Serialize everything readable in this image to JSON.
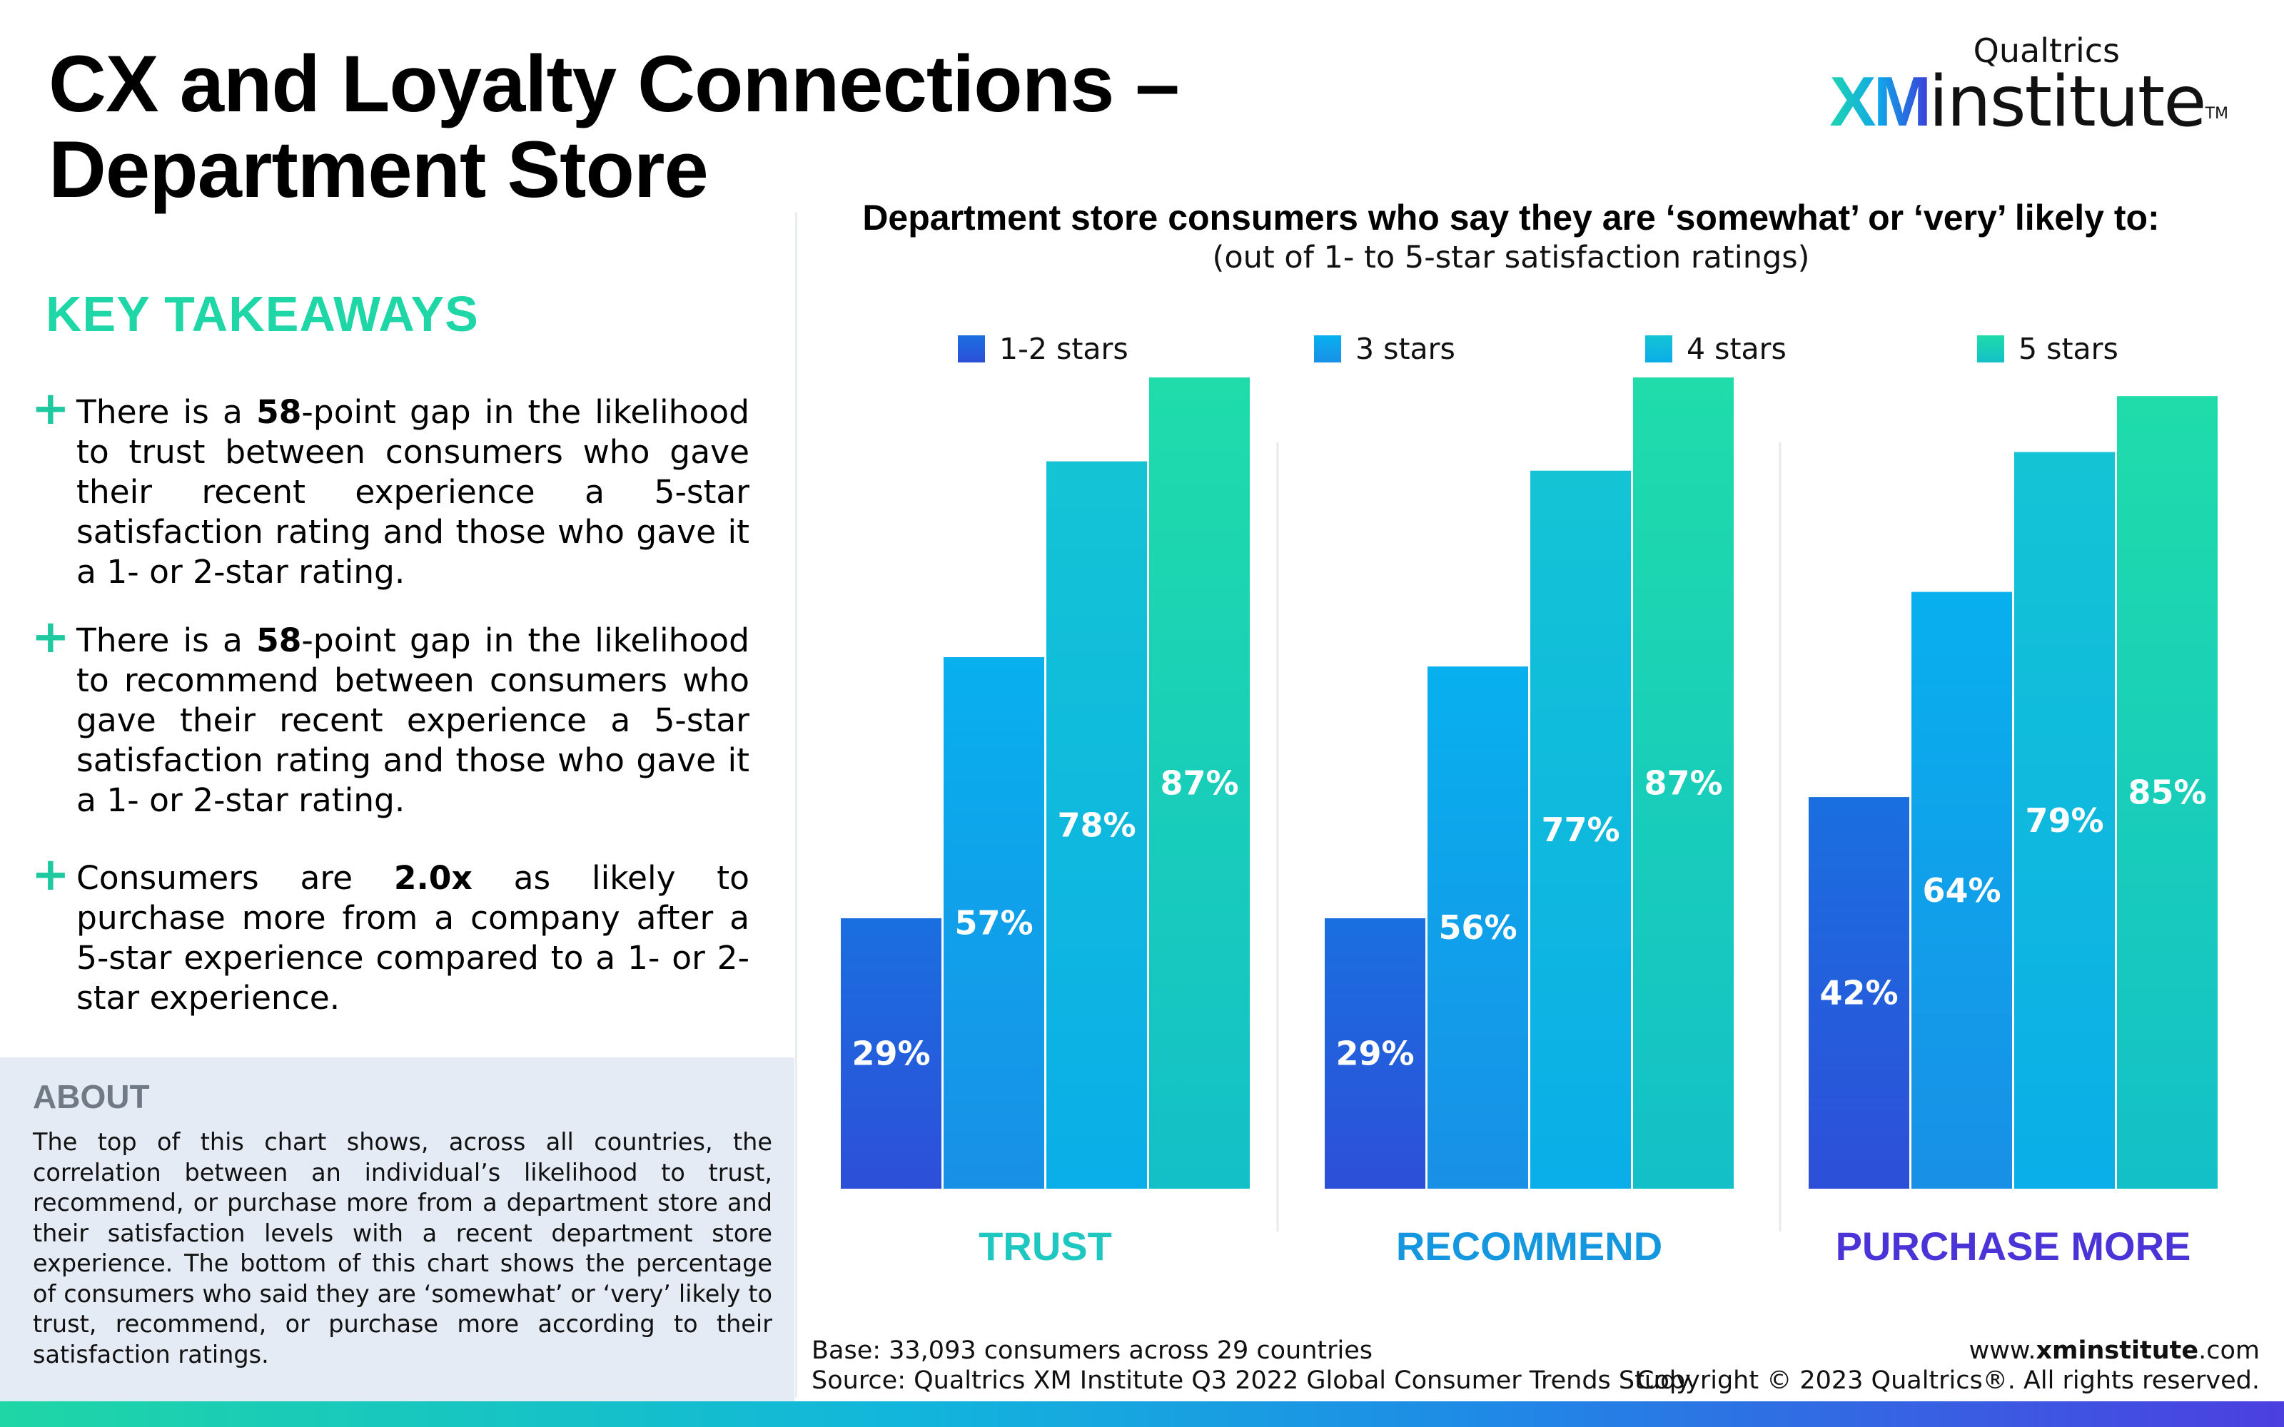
{
  "title": {
    "line1": "CX and Loyalty Connections –",
    "line2": "Department Store"
  },
  "logo": {
    "top": "Qualtrics",
    "xm": "XM",
    "institute": "institute",
    "tm": "TM"
  },
  "takeaways": {
    "heading": "KEY TAKEAWAYS",
    "items": [
      {
        "pre": "There is a ",
        "bold": "58",
        "post": "-point gap in the likelihood to trust between consumers who gave their recent experience a 5-star satisfaction rating and those who gave it a 1- or 2-star rating."
      },
      {
        "pre": "There is a  ",
        "bold": "58",
        "post": "-point gap in the likelihood to recommend between consumers who gave their recent experience a 5-star satisfaction rating and those who gave it a 1- or 2-star rating."
      },
      {
        "pre": "Consumers are ",
        "bold": "2.0x",
        "post": " as likely to purchase more from a company after a 5-star experience compared to a 1- or 2-star experience."
      }
    ]
  },
  "about": {
    "heading": "ABOUT",
    "text": "The top of this chart shows, across all countries, the correlation between an individual’s likelihood to trust, recommend, or purchase more from a department store and their satisfaction levels with a recent department store experience. The bottom of this chart shows the percentage of consumers who said they are ‘somewhat’ or ‘very’ likely to trust, recommend, or purchase more according to their satisfaction ratings."
  },
  "footer": {
    "base": "Base: 33,093 consumers across 29 countries",
    "source": "Source: Qualtrics XM Institute Q3 2022 Global Consumer Trends Study",
    "url_pre": "www.",
    "url_bold": "xminstitute",
    "url_post": ".com",
    "copyright": "Copyright © 2023 Qualtrics®. All rights reserved."
  },
  "chart_data": {
    "type": "bar",
    "title": "Department store consumers who say they are ‘somewhat’ or ‘very’ likely to:",
    "subtitle": "(out of 1- to 5-star satisfaction ratings)",
    "categories": [
      "TRUST",
      "RECOMMEND",
      "PURCHASE MORE"
    ],
    "category_colors": [
      "#1ec7c0",
      "#1597e0",
      "#4a34d8"
    ],
    "series": [
      {
        "name": "1-2 stars",
        "values": [
          29,
          29,
          42
        ],
        "labels": [
          "29%",
          "29%",
          "42%"
        ],
        "color_top": "#1a6fe0",
        "color_bottom": "#2d4fd8"
      },
      {
        "name": "3 stars",
        "values": [
          57,
          56,
          64
        ],
        "labels": [
          "57%",
          "56%",
          "64%"
        ],
        "color_top": "#08b0ee",
        "color_bottom": "#1890e6"
      },
      {
        "name": "4 stars",
        "values": [
          78,
          77,
          79
        ],
        "labels": [
          "78%",
          "77%",
          "79%"
        ],
        "color_top": "#14c4d4",
        "color_bottom": "#0aaee8"
      },
      {
        "name": "5 stars",
        "values": [
          87,
          87,
          85
        ],
        "labels": [
          "87%",
          "87%",
          "85%"
        ],
        "color_top": "#1fdcaa",
        "color_bottom": "#13c0c8"
      }
    ],
    "ylim": [
      0,
      100
    ],
    "legend_position": "top",
    "grid": false,
    "value_labels": "inside bars, white"
  }
}
